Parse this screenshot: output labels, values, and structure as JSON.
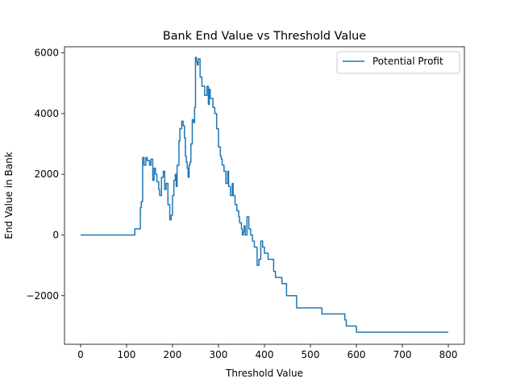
{
  "chart_data": {
    "type": "line",
    "title": "Bank End Value vs Threshold Value",
    "xlabel": "Threshold Value",
    "ylabel": "End Value in Bank",
    "xlim": [
      -35,
      835
    ],
    "ylim": [
      -3600,
      6200
    ],
    "xticks": [
      0,
      100,
      200,
      300,
      400,
      500,
      600,
      700,
      800
    ],
    "xtick_labels": [
      "0",
      "100",
      "200",
      "300",
      "400",
      "500",
      "600",
      "700",
      "800"
    ],
    "yticks": [
      -2000,
      0,
      2000,
      4000,
      6000
    ],
    "ytick_labels": [
      "−2000",
      "0",
      "2000",
      "4000",
      "6000"
    ],
    "grid": false,
    "legend_position": "top-right",
    "series": [
      {
        "name": "Potential Profit",
        "color": "#1f77b4",
        "step": true,
        "x": [
          0,
          115,
          118,
          128,
          130,
          132,
          135,
          138,
          142,
          145,
          150,
          153,
          157,
          160,
          163,
          166,
          170,
          172,
          176,
          180,
          183,
          186,
          190,
          194,
          197,
          200,
          203,
          206,
          208,
          210,
          214,
          216,
          220,
          223,
          226,
          228,
          230,
          232,
          234,
          236,
          238,
          240,
          243,
          246,
          248,
          250,
          252,
          254,
          256,
          260,
          264,
          268,
          270,
          273,
          275,
          278,
          280,
          282,
          284,
          288,
          292,
          296,
          300,
          304,
          306,
          308,
          312,
          316,
          320,
          322,
          326,
          330,
          332,
          336,
          340,
          344,
          346,
          350,
          352,
          354,
          356,
          358,
          362,
          366,
          370,
          374,
          378,
          384,
          388,
          392,
          396,
          400,
          404,
          408,
          412,
          416,
          420,
          424,
          430,
          438,
          448,
          456,
          460,
          465,
          470,
          480,
          490,
          500,
          505,
          510,
          520,
          525,
          540,
          560,
          570,
          575,
          578,
          585,
          600,
          650,
          700,
          750,
          800
        ],
        "y": [
          0,
          0,
          200,
          200,
          900,
          1100,
          2550,
          2300,
          2550,
          2450,
          2300,
          2500,
          1800,
          2200,
          2000,
          1750,
          1500,
          1300,
          1900,
          2100,
          1500,
          1700,
          1000,
          500,
          650,
          1300,
          1800,
          2000,
          1600,
          2300,
          3100,
          3500,
          3750,
          3600,
          3200,
          2600,
          2400,
          2200,
          1900,
          2300,
          2400,
          3000,
          3800,
          3700,
          4200,
          5850,
          5700,
          5600,
          5800,
          5200,
          4900,
          4900,
          4600,
          4600,
          4900,
          4300,
          4800,
          4500,
          4500,
          4200,
          4000,
          3500,
          2900,
          2600,
          2500,
          2300,
          2100,
          1700,
          2100,
          1600,
          1300,
          1700,
          1300,
          1000,
          800,
          600,
          400,
          200,
          0,
          100,
          300,
          0,
          600,
          200,
          0,
          -200,
          -400,
          -1000,
          -800,
          -200,
          -400,
          -600,
          -600,
          -800,
          -800,
          -800,
          -1200,
          -1400,
          -1400,
          -1600,
          -2000,
          -2000,
          -2000,
          -2000,
          -2400,
          -2400,
          -2400,
          -2400,
          -2400,
          -2400,
          -2400,
          -2600,
          -2600,
          -2600,
          -2600,
          -2800,
          -3000,
          -3000,
          -3200,
          -3200,
          -3200,
          -3200,
          -3200
        ]
      }
    ]
  }
}
